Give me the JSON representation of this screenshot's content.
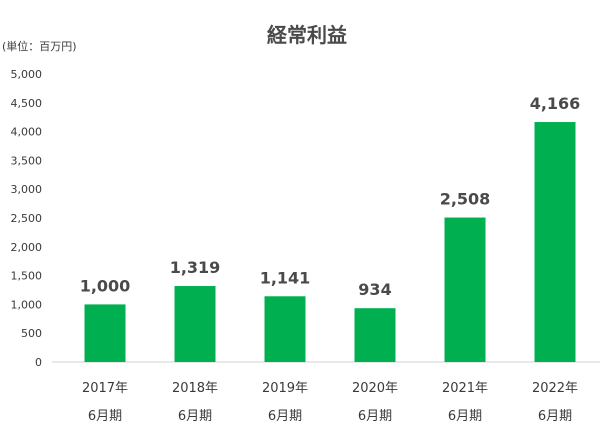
{
  "chart_data": {
    "type": "bar",
    "title": "経常利益",
    "unit_label": "(単位：百万円)",
    "categories": [
      [
        "2017年",
        "6月期"
      ],
      [
        "2018年",
        "6月期"
      ],
      [
        "2019年",
        "6月期"
      ],
      [
        "2020年",
        "6月期"
      ],
      [
        "2021年",
        "6月期"
      ],
      [
        "2022年",
        "6月期"
      ]
    ],
    "values": [
      1000,
      1319,
      1141,
      934,
      2508,
      4166
    ],
    "data_labels": [
      "1,000",
      "1,319",
      "1,141",
      "934",
      "2,508",
      "4,166"
    ],
    "yticks": [
      "0",
      "500",
      "1,000",
      "1,500",
      "2,000",
      "2,500",
      "3,000",
      "3,500",
      "4,000",
      "4,500",
      "5,000"
    ],
    "ylim": [
      0,
      5000
    ],
    "ytick_step": 500,
    "grid": false,
    "legend": "none",
    "bar_color": "#00b050"
  }
}
